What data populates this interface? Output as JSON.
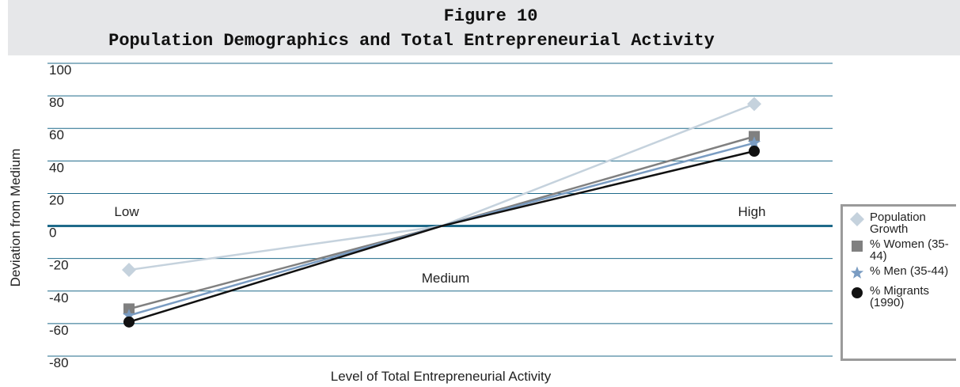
{
  "chart_data": {
    "type": "line",
    "title": "Figure 10",
    "subtitle": "Population Demographics and Total Entrepreneurial Activity",
    "xlabel": "Level of Total Entrepreneurial Activity",
    "ylabel": "Deviation from Medium",
    "categories": [
      "Low",
      "Medium",
      "High"
    ],
    "series": [
      {
        "name": "Population Growth",
        "color": "#c5d2dd",
        "marker": "diamond",
        "values": [
          -27,
          0,
          75
        ]
      },
      {
        "name": "% Women (35-44)",
        "color": "#808080",
        "marker": "square",
        "values": [
          -51,
          0,
          55
        ]
      },
      {
        "name": "% Men (35-44)",
        "color": "#7a9cc2",
        "marker": "star",
        "values": [
          -55,
          0,
          51
        ]
      },
      {
        "name": "% Migrants (1990)",
        "color": "#111111",
        "marker": "circle",
        "values": [
          -59,
          0,
          46
        ]
      }
    ],
    "ylim": [
      -80,
      100
    ],
    "yticks": [
      -80,
      -60,
      -40,
      -20,
      0,
      20,
      40,
      60,
      80,
      100
    ],
    "grid": true,
    "legend": "right"
  }
}
